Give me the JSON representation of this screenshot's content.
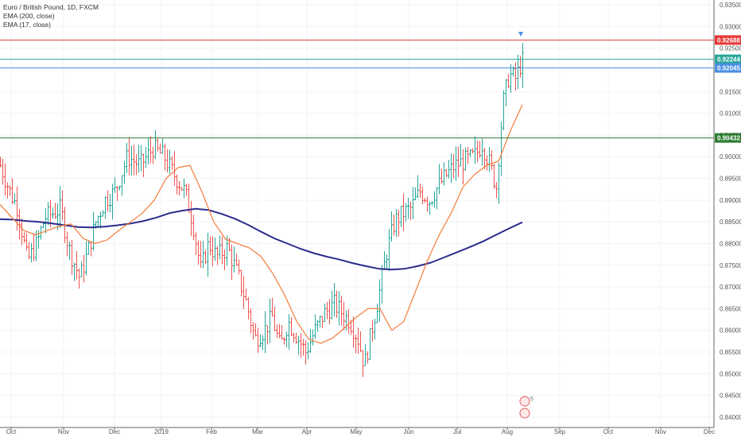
{
  "chart_data": {
    "type": "ohlc",
    "title": "Euro / British Pound, 1D, FXCM",
    "indicators": [
      "EMA (200, close)",
      "EMA (17, close)"
    ],
    "ylim": [
      0.84,
      0.935
    ],
    "y_ticks": [
      "0.93500",
      "0.93000",
      "0.92500",
      "0.92000",
      "0.91500",
      "0.91000",
      "0.90500",
      "0.90000",
      "0.89500",
      "0.89000",
      "0.88500",
      "0.88000",
      "0.87500",
      "0.87000",
      "0.86500",
      "0.86000",
      "0.85500",
      "0.85000",
      "0.84500",
      "0.84000"
    ],
    "x_ticks": [
      "Oct",
      "Nov",
      "Dec",
      "2019",
      "Feb",
      "Mar",
      "Apr",
      "May",
      "Jun",
      "Jul",
      "Aug",
      "Sep",
      "Oct",
      "Nov",
      "Dec"
    ],
    "grid": true,
    "price_lines": [
      {
        "label": "0.92688",
        "value": 0.92688,
        "color": "#e53935"
      },
      {
        "label": "0.92244",
        "value": 0.92244,
        "color": "#26a69a"
      },
      {
        "label": "0.92045",
        "value": 0.92045,
        "color": "#4a90e2"
      },
      {
        "label": "0.90432",
        "value": 0.90432,
        "color": "#2e7d32"
      }
    ],
    "ema200": [
      0.8856,
      0.8855,
      0.8852,
      0.885,
      0.8846,
      0.8842,
      0.8838,
      0.8837,
      0.8839,
      0.8842,
      0.8846,
      0.8852,
      0.886,
      0.887,
      0.8876,
      0.888,
      0.8877,
      0.8868,
      0.8857,
      0.8843,
      0.8827,
      0.8812,
      0.88,
      0.8788,
      0.8778,
      0.877,
      0.8763,
      0.8755,
      0.8748,
      0.8742,
      0.874,
      0.8742,
      0.8748,
      0.8756,
      0.8768,
      0.878,
      0.8792,
      0.8805,
      0.882,
      0.8835,
      0.8849
    ],
    "ema17": [
      0.889,
      0.886,
      0.883,
      0.882,
      0.883,
      0.884,
      0.8845,
      0.8812,
      0.88,
      0.8808,
      0.883,
      0.885,
      0.887,
      0.89,
      0.895,
      0.8975,
      0.898,
      0.892,
      0.885,
      0.881,
      0.88,
      0.879,
      0.877,
      0.873,
      0.868,
      0.862,
      0.858,
      0.857,
      0.8582,
      0.8605,
      0.863,
      0.865,
      0.865,
      0.86,
      0.862,
      0.869,
      0.876,
      0.882,
      0.887,
      0.893,
      0.896,
      0.898,
      0.899,
      0.906,
      0.912
    ]
  },
  "legend": {
    "title": "Euro / British Pound, 1D, FXCM",
    "ema200": "EMA (200, close)",
    "ema17": "EMA (17, close)"
  },
  "colors": {
    "up_bar": "#26a69a",
    "down_bar": "#ef5350",
    "ema200": "#2c2c8c",
    "ema17": "#f57c3a",
    "grid": "#f0f3fa",
    "axis": "#555555"
  },
  "events": {
    "badge_count": "5"
  }
}
